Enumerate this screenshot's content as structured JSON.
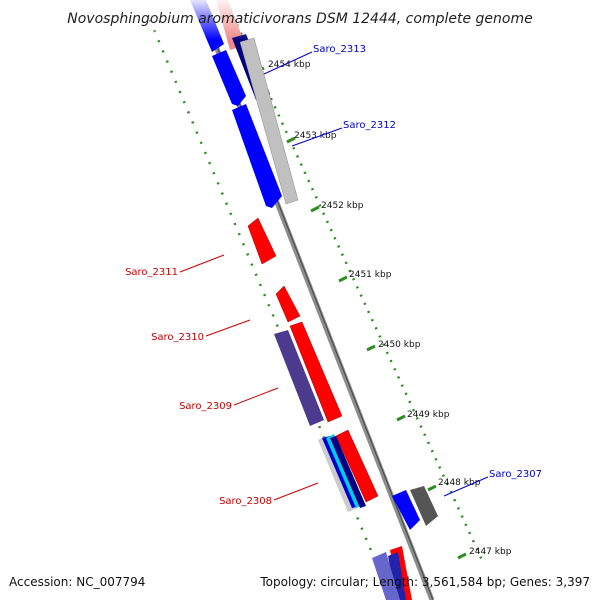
{
  "title": "Novosphingobium aromaticivorans DSM 12444, complete genome",
  "footer": {
    "accession": "Accession: NC_007794",
    "summary": "Topology: circular; Length: 3,561,584 bp; Genes: 3,397"
  },
  "colors": {
    "forward": "#0000ff",
    "reverse": "#ff0000",
    "backbone": "#8c8c8c",
    "ticks": "#2e8b22",
    "label_forward": "#0000cc",
    "label_reverse": "#cc0000"
  },
  "kbp_marks": [
    "2454 kbp",
    "2453 kbp",
    "2452 kbp",
    "2451 kbp",
    "2450 kbp",
    "2449 kbp",
    "2448 kbp",
    "2447 kbp"
  ],
  "gene_labels": [
    {
      "name": "Saro_2313",
      "strand": "forward"
    },
    {
      "name": "Saro_2312",
      "strand": "forward"
    },
    {
      "name": "Saro_2311",
      "strand": "reverse"
    },
    {
      "name": "Saro_2310",
      "strand": "reverse"
    },
    {
      "name": "Saro_2309",
      "strand": "reverse"
    },
    {
      "name": "Saro_2308",
      "strand": "reverse"
    },
    {
      "name": "Saro_2307",
      "strand": "forward"
    }
  ]
}
